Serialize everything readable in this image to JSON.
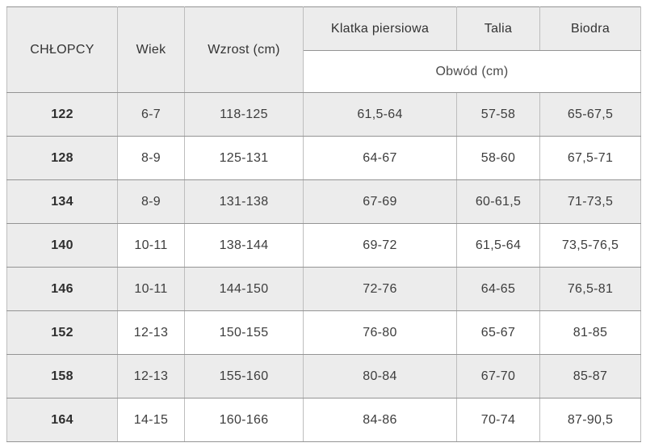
{
  "table": {
    "title_column": "CHŁOPCY",
    "header": {
      "boys": "CHŁOPCY",
      "age": "Wiek",
      "height": "Wzrost (cm)",
      "chest": "Klatka piersiowa",
      "waist": "Talia",
      "hips": "Biodra",
      "circumference": "Obwód (cm)"
    },
    "rows": [
      {
        "size": "122",
        "age": "6-7",
        "height": "118-125",
        "chest": "61,5-64",
        "waist": "57-58",
        "hips": "65-67,5"
      },
      {
        "size": "128",
        "age": "8-9",
        "height": "125-131",
        "chest": "64-67",
        "waist": "58-60",
        "hips": "67,5-71"
      },
      {
        "size": "134",
        "age": "8-9",
        "height": "131-138",
        "chest": "67-69",
        "waist": "60-61,5",
        "hips": "71-73,5"
      },
      {
        "size": "140",
        "age": "10-11",
        "height": "138-144",
        "chest": "69-72",
        "waist": "61,5-64",
        "hips": "73,5-76,5"
      },
      {
        "size": "146",
        "age": "10-11",
        "height": "144-150",
        "chest": "72-76",
        "waist": "64-65",
        "hips": "76,5-81"
      },
      {
        "size": "152",
        "age": "12-13",
        "height": "150-155",
        "chest": "76-80",
        "waist": "65-67",
        "hips": "81-85"
      },
      {
        "size": "158",
        "age": "12-13",
        "height": "155-160",
        "chest": "80-84",
        "waist": "67-70",
        "hips": "85-87"
      },
      {
        "size": "164",
        "age": "14-15",
        "height": "160-166",
        "chest": "84-86",
        "waist": "70-74",
        "hips": "87-90,5"
      }
    ],
    "colors": {
      "shaded_cell_bg": "#ececec",
      "plain_cell_bg": "#ffffff",
      "border_horizontal": "#949494",
      "border_vertical": "#bdbdbd",
      "outer_border": "#8f8f8f",
      "text": "#3d3d3d"
    }
  }
}
